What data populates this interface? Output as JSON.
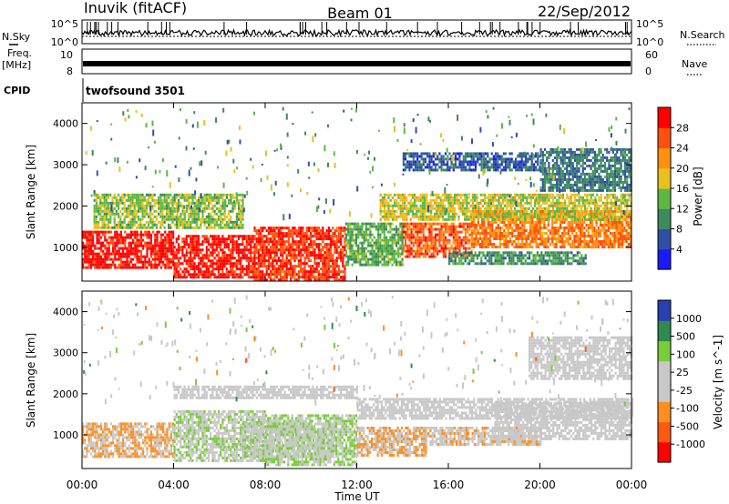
{
  "header": {
    "station": "Inuvik (fitACF)",
    "beam": "Beam 01",
    "date": "22/Sep/2012"
  },
  "strips": {
    "nsky_label": "N.Sky",
    "nsky_ticks": [
      "10^5",
      "10^0"
    ],
    "nsearch_label": "N.Search",
    "nsearch_ticks": [
      "10^5",
      "10^0"
    ],
    "freq_label": "Freq.",
    "freq_unit": "[MHz]",
    "freq_ticks": [
      "10",
      "8"
    ],
    "nave_label": "Nave",
    "nave_ticks": [
      "60",
      "0"
    ],
    "cpid_label": "CPID",
    "cpid_value": "twofsound 3501"
  },
  "colors": {
    "power_scale": [
      "#1a1aff",
      "#2f4fa6",
      "#3d8a5c",
      "#5cb845",
      "#e8c020",
      "#ff9010",
      "#ff5010",
      "#ff0000"
    ],
    "velocity_scale": [
      "#ff0000",
      "#ff5a10",
      "#ff9020",
      "#c8c8c8",
      "#c8c8c8",
      "#7acc3a",
      "#2f8a4f",
      "#2a3fb0"
    ]
  },
  "chart_data": [
    {
      "type": "heatmap",
      "panel": "power",
      "ylabel": "Slant Range [km]",
      "yticks": [
        "4000",
        "3000",
        "2000",
        "1000"
      ],
      "ylim": [
        180,
        4500
      ],
      "colorbar_label": "Power [dB]",
      "colorbar_ticks": [
        "28",
        "24",
        "20",
        "16",
        "12",
        "8",
        "4"
      ],
      "colorbar_range": [
        0,
        30
      ],
      "bands": [
        {
          "t0": 0.0,
          "t1": 4.0,
          "r0": 500,
          "r1": 1400,
          "level": 28
        },
        {
          "t0": 4.0,
          "t1": 7.5,
          "r0": 300,
          "r1": 1300,
          "level": 28
        },
        {
          "t0": 7.5,
          "t1": 11.5,
          "r0": 200,
          "r1": 1500,
          "level": 26
        },
        {
          "t0": 11.5,
          "t1": 14.0,
          "r0": 600,
          "r1": 1600,
          "level": 12
        },
        {
          "t0": 14.0,
          "t1": 17.0,
          "r0": 800,
          "r1": 1600,
          "level": 24
        },
        {
          "t0": 17.0,
          "t1": 24.0,
          "r0": 1000,
          "r1": 1900,
          "level": 22
        },
        {
          "t0": 0.5,
          "t1": 7.0,
          "r0": 1500,
          "r1": 2300,
          "level": 14
        },
        {
          "t0": 13.0,
          "t1": 24.0,
          "r0": 1700,
          "r1": 2300,
          "level": 16
        },
        {
          "t0": 16.0,
          "t1": 22.0,
          "r0": 600,
          "r1": 900,
          "level": 10
        },
        {
          "t0": 20.0,
          "t1": 24.0,
          "r0": 2400,
          "r1": 3400,
          "level": 8
        },
        {
          "t0": 14.0,
          "t1": 20.0,
          "r0": 2900,
          "r1": 3300,
          "level": 6
        }
      ]
    },
    {
      "type": "heatmap",
      "panel": "velocity",
      "ylabel": "Slant Range [km]",
      "yticks": [
        "4000",
        "3000",
        "2000",
        "1000"
      ],
      "ylim": [
        180,
        4500
      ],
      "colorbar_label": "Velocity [m s^-1]",
      "colorbar_ticks": [
        "1000",
        "500",
        "100",
        "25",
        "-25",
        "-100",
        "-500",
        "-1000"
      ],
      "colorbar_range": [
        -1200,
        1200
      ],
      "bands": [
        {
          "t0": 0.0,
          "t1": 4.0,
          "r0": 500,
          "r1": 1300,
          "level": -300
        },
        {
          "t0": 4.0,
          "t1": 8.0,
          "r0": 400,
          "r1": 1600,
          "level": 200
        },
        {
          "t0": 8.0,
          "t1": 12.0,
          "r0": 300,
          "r1": 1500,
          "level": 300
        },
        {
          "t0": 12.0,
          "t1": 15.0,
          "r0": 500,
          "r1": 1200,
          "level": -300
        },
        {
          "t0": 15.0,
          "t1": 20.0,
          "r0": 800,
          "r1": 1200,
          "level": -150
        },
        {
          "t0": 18.0,
          "t1": 24.0,
          "r0": 900,
          "r1": 1800,
          "level": 0
        },
        {
          "t0": 4.0,
          "t1": 12.0,
          "r0": 1900,
          "r1": 2200,
          "level": 0
        },
        {
          "t0": 12.0,
          "t1": 24.0,
          "r0": 1400,
          "r1": 1900,
          "level": 0
        },
        {
          "t0": 19.5,
          "t1": 24.0,
          "r0": 2400,
          "r1": 3400,
          "level": 0
        },
        {
          "t0": 7.0,
          "t1": 11.0,
          "r0": 500,
          "r1": 1300,
          "level": 150
        }
      ]
    }
  ],
  "xaxis": {
    "label": "Time UT",
    "ticks": [
      "00:00",
      "04:00",
      "08:00",
      "12:00",
      "16:00",
      "20:00",
      "00:00"
    ],
    "range_hours": [
      0,
      24
    ]
  }
}
